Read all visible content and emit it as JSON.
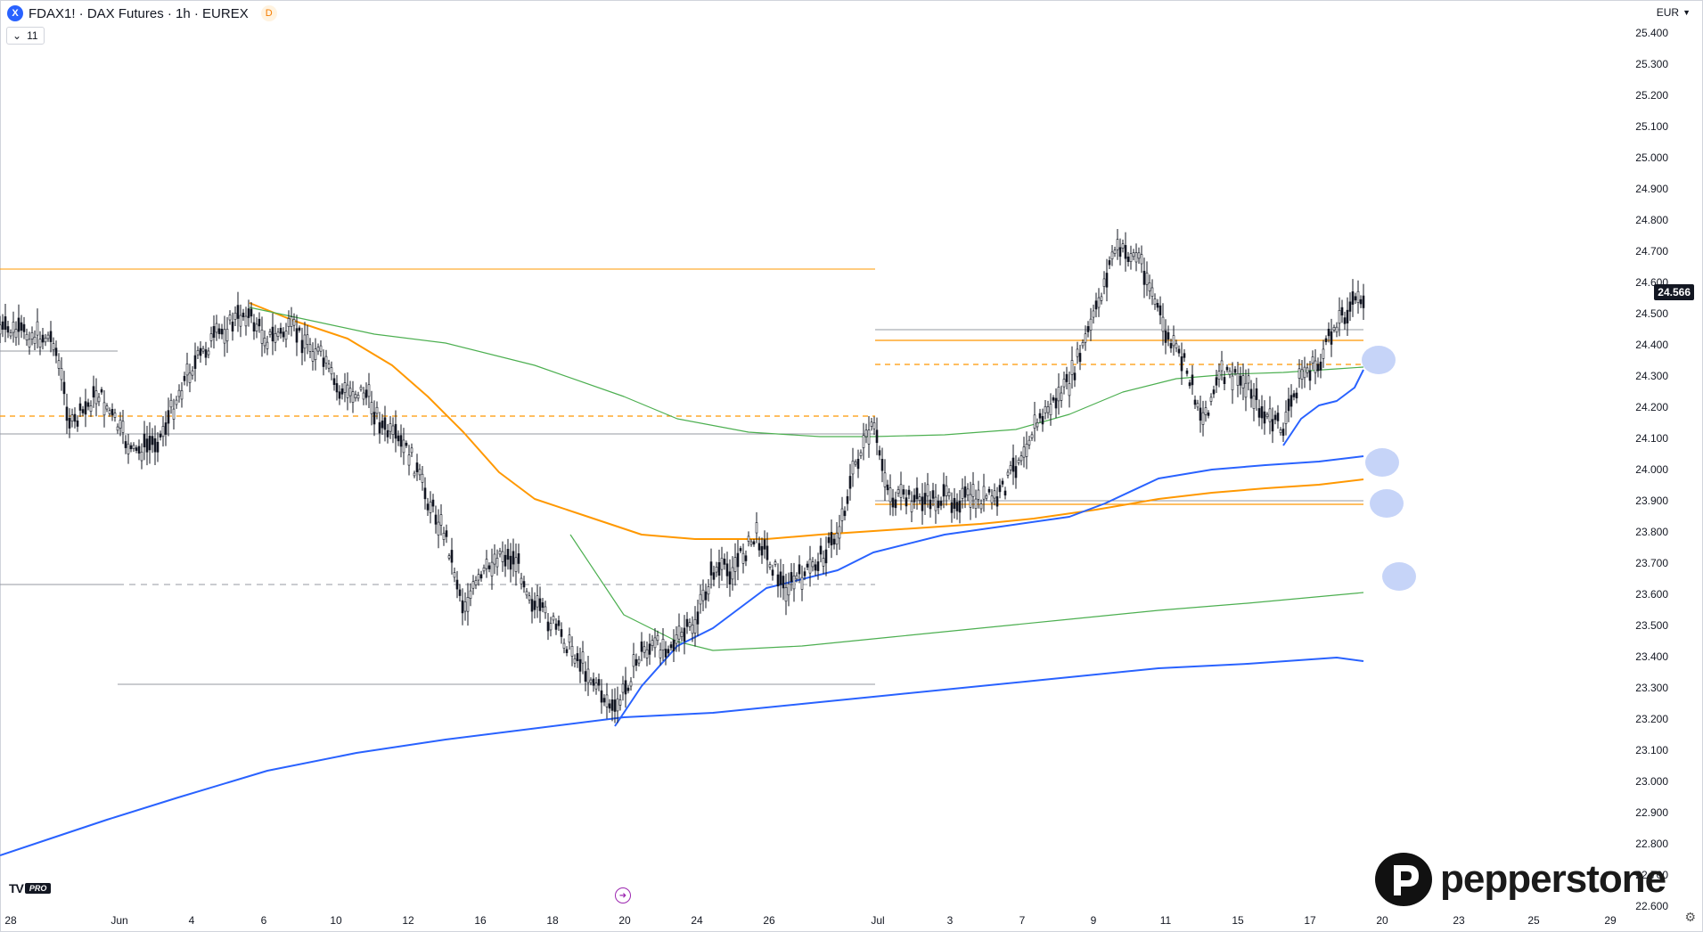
{
  "header": {
    "symbol_icon": "X",
    "title": "FDAX1! · DAX Futures · 1h · EUREX",
    "badge": "D",
    "indicators_toggle": "11"
  },
  "price_scale": {
    "currency": "EUR",
    "ticks": [
      "25.400",
      "25.300",
      "25.200",
      "25.100",
      "25.000",
      "24.900",
      "24.800",
      "24.700",
      "24.600",
      "24.500",
      "24.400",
      "24.300",
      "24.200",
      "24.100",
      "24.000",
      "23.900",
      "23.800",
      "23.700",
      "23.600",
      "23.500",
      "23.400",
      "23.300",
      "23.200",
      "23.100",
      "23.000",
      "22.900",
      "22.800",
      "22.700",
      "22.600"
    ],
    "last_price": "24.566"
  },
  "time_scale": {
    "ticks": [
      "28",
      "Jun",
      "4",
      "6",
      "10",
      "12",
      "16",
      "18",
      "20",
      "24",
      "26",
      "Jul",
      "3",
      "7",
      "9",
      "11",
      "15",
      "17",
      "20",
      "23",
      "25",
      "29"
    ]
  },
  "icons": {
    "symbol": "exchange-logo-icon",
    "replay": "replay-icon",
    "settings": "gear-icon",
    "chevron": "chevron-down-icon"
  },
  "colors": {
    "candle": "#131722",
    "orange": "#ff9800",
    "green": "#4caf50",
    "blue": "#2962ff",
    "grey": "#9598a1",
    "circle": "#b3c6f5"
  },
  "watermark": {
    "brand": "pepperstone",
    "platform": "TV",
    "platform_tier": "PRO"
  }
}
